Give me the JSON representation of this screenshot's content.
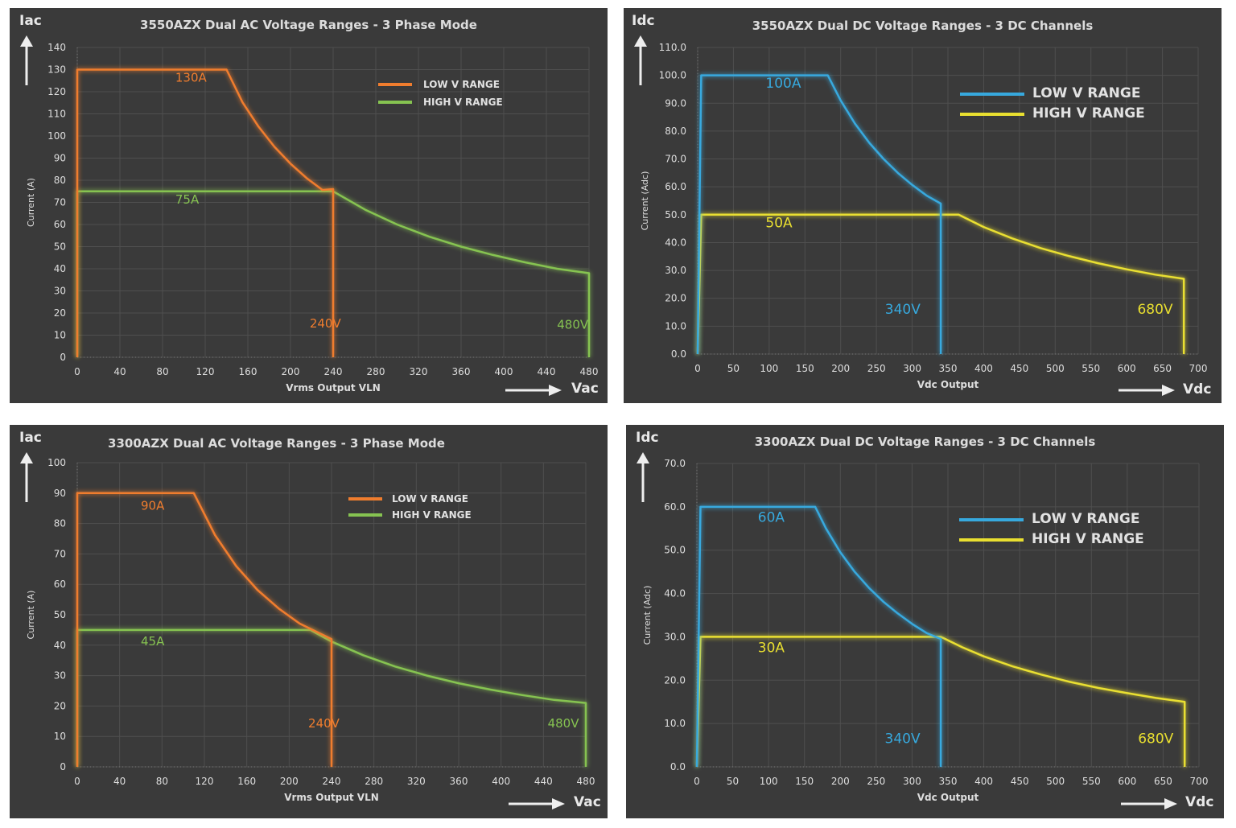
{
  "chart_data": [
    {
      "type": "line",
      "title": "3550AZX Dual AC Voltage Ranges - 3 Phase Mode",
      "xlabel": "Vrms Output VLN",
      "ylabel": "Current (A)",
      "x_unit": "Vac",
      "y_unit": "Iac",
      "xlim": [
        0,
        480
      ],
      "ylim": [
        0,
        140
      ],
      "xticks": [
        0,
        40,
        80,
        120,
        160,
        200,
        240,
        280,
        320,
        360,
        400,
        440,
        480
      ],
      "yticks": [
        0,
        10,
        20,
        30,
        40,
        50,
        60,
        70,
        80,
        90,
        100,
        110,
        120,
        130,
        140
      ],
      "tick_decimals": 0,
      "legend": "top-right",
      "grid": true,
      "series": [
        {
          "name": "LOW V RANGE",
          "color": "#f07d2e",
          "x": [
            0,
            0,
            140,
            155,
            170,
            185,
            200,
            215,
            230,
            240,
            240
          ],
          "y": [
            0,
            130,
            130,
            115.2,
            104.2,
            95.1,
            87.5,
            81.0,
            75.6,
            76,
            0
          ]
        },
        {
          "name": "HIGH V RANGE",
          "color": "#86c351",
          "x": [
            0,
            0,
            240,
            270,
            300,
            330,
            360,
            390,
            420,
            450,
            480,
            480
          ],
          "y": [
            0,
            75,
            75,
            66.7,
            60.0,
            54.5,
            50.0,
            46.2,
            42.9,
            40.0,
            38,
            0
          ]
        }
      ],
      "annotations": [
        {
          "text": "130A",
          "x": 92,
          "y": 124.5,
          "color": "#f07d2e"
        },
        {
          "text": "75A",
          "x": 92,
          "y": 69.5,
          "color": "#86c351"
        },
        {
          "text": "240V",
          "x": 218,
          "y": 13.5,
          "color": "#f07d2e"
        },
        {
          "text": "480V",
          "x": 450,
          "y": 13,
          "color": "#86c351"
        }
      ]
    },
    {
      "type": "line",
      "title": "3550AZX Dual DC Voltage Ranges - 3 DC Channels",
      "xlabel": "Vdc Output",
      "ylabel": "Current (Adc)",
      "x_unit": "Vdc",
      "y_unit": "Idc",
      "xlim": [
        0,
        700
      ],
      "ylim": [
        0,
        110
      ],
      "xticks": [
        0,
        50,
        100,
        150,
        200,
        250,
        300,
        350,
        400,
        450,
        500,
        550,
        600,
        650,
        700
      ],
      "yticks": [
        0,
        10,
        20,
        30,
        40,
        50,
        60,
        70,
        80,
        90,
        100,
        110
      ],
      "tick_decimals": 1,
      "legend": "top-right",
      "grid": true,
      "series": [
        {
          "name": "LOW V RANGE",
          "color": "#37a9de",
          "x": [
            0,
            5,
            182,
            200,
            220,
            240,
            260,
            280,
            300,
            320,
            340,
            340
          ],
          "y": [
            0,
            100,
            100,
            91.0,
            82.7,
            75.8,
            70.0,
            65.0,
            60.7,
            56.9,
            54,
            0
          ]
        },
        {
          "name": "HIGH V RANGE",
          "color": "#e9df30",
          "x": [
            0,
            5,
            365,
            400,
            440,
            480,
            520,
            560,
            600,
            640,
            680,
            680
          ],
          "y": [
            0,
            50,
            50,
            45.6,
            41.5,
            38.0,
            35.1,
            32.6,
            30.4,
            28.5,
            27,
            0
          ]
        }
      ],
      "annotations": [
        {
          "text": "100A",
          "x": 95,
          "y": 95.5,
          "color": "#37a9de"
        },
        {
          "text": "50A",
          "x": 95,
          "y": 45.5,
          "color": "#e9df30"
        },
        {
          "text": "340V",
          "x": 262,
          "y": 14.5,
          "color": "#37a9de"
        },
        {
          "text": "680V",
          "x": 615,
          "y": 14.5,
          "color": "#e9df30"
        }
      ]
    },
    {
      "type": "line",
      "title": "3300AZX Dual AC Voltage Ranges - 3 Phase Mode",
      "xlabel": "Vrms Output VLN",
      "ylabel": "Current (A)",
      "x_unit": "Vac",
      "y_unit": "Iac",
      "xlim": [
        0,
        480
      ],
      "ylim": [
        0,
        100
      ],
      "xticks": [
        0,
        40,
        80,
        120,
        160,
        200,
        240,
        280,
        320,
        360,
        400,
        440,
        480
      ],
      "yticks": [
        0,
        10,
        20,
        30,
        40,
        50,
        60,
        70,
        80,
        90,
        100
      ],
      "tick_decimals": 0,
      "legend": "top-right",
      "grid": true,
      "series": [
        {
          "name": "LOW V RANGE",
          "color": "#f07d2e",
          "x": [
            0,
            0,
            110,
            130,
            150,
            170,
            190,
            210,
            240,
            240
          ],
          "y": [
            0,
            90,
            90,
            76.2,
            66.0,
            58.2,
            52.1,
            47.1,
            42,
            0
          ]
        },
        {
          "name": "HIGH V RANGE",
          "color": "#86c351",
          "x": [
            0,
            0,
            220,
            240,
            270,
            300,
            330,
            360,
            390,
            420,
            450,
            480,
            480
          ],
          "y": [
            0,
            45,
            45,
            41.2,
            36.7,
            33.0,
            30.0,
            27.5,
            25.4,
            23.6,
            22.0,
            21,
            0
          ]
        }
      ],
      "annotations": [
        {
          "text": "90A",
          "x": 60,
          "y": 84.5,
          "color": "#f07d2e"
        },
        {
          "text": "45A",
          "x": 60,
          "y": 40,
          "color": "#86c351"
        },
        {
          "text": "240V",
          "x": 218,
          "y": 13,
          "color": "#f07d2e"
        },
        {
          "text": "480V",
          "x": 444,
          "y": 13,
          "color": "#86c351"
        }
      ]
    },
    {
      "type": "line",
      "title": "3300AZX Dual DC Voltage Ranges - 3 DC Channels",
      "xlabel": "Vdc Output",
      "ylabel": "Current (Adc)",
      "x_unit": "Vdc",
      "y_unit": "Idc",
      "xlim": [
        0,
        700
      ],
      "ylim": [
        0,
        70
      ],
      "xticks": [
        0,
        50,
        100,
        150,
        200,
        250,
        300,
        350,
        400,
        450,
        500,
        550,
        600,
        650,
        700
      ],
      "yticks": [
        0,
        10,
        20,
        30,
        40,
        50,
        60,
        70
      ],
      "tick_decimals": 1,
      "legend": "top-right",
      "grid": true,
      "series": [
        {
          "name": "LOW V RANGE",
          "color": "#37a9de",
          "x": [
            0,
            5,
            165,
            180,
            200,
            220,
            240,
            260,
            280,
            300,
            320,
            340,
            340
          ],
          "y": [
            0,
            60,
            60,
            55.0,
            49.5,
            45.0,
            41.3,
            38.1,
            35.4,
            33.0,
            30.9,
            29.5,
            0
          ]
        },
        {
          "name": "HIGH V RANGE",
          "color": "#e9df30",
          "x": [
            0,
            5,
            340,
            370,
            400,
            440,
            480,
            520,
            560,
            600,
            640,
            680,
            680
          ],
          "y": [
            0,
            30,
            30,
            27.6,
            25.5,
            23.2,
            21.3,
            19.6,
            18.2,
            17.0,
            15.9,
            15,
            0
          ]
        }
      ],
      "annotations": [
        {
          "text": "60A",
          "x": 85,
          "y": 56.5,
          "color": "#37a9de"
        },
        {
          "text": "30A",
          "x": 85,
          "y": 26.5,
          "color": "#e9df30"
        },
        {
          "text": "340V",
          "x": 262,
          "y": 5.5,
          "color": "#37a9de"
        },
        {
          "text": "680V",
          "x": 615,
          "y": 5.5,
          "color": "#e9df30"
        }
      ]
    }
  ]
}
